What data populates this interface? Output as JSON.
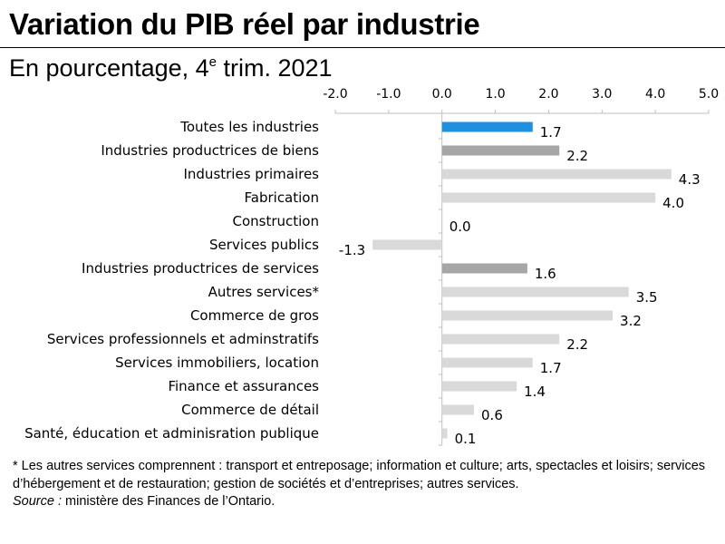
{
  "title": "Variation du PIB réel par industrie",
  "subtitle": {
    "prefix": "En pourcentage, 4",
    "superscript": "e",
    "suffix": " trim. 2021"
  },
  "chart_data": {
    "type": "bar",
    "orientation": "horizontal",
    "title": "Variation du PIB réel par industrie",
    "xlabel": "",
    "ylabel": "",
    "xlim": [
      -2.0,
      5.0
    ],
    "xticks": [
      -2.0,
      -1.0,
      0.0,
      1.0,
      2.0,
      3.0,
      4.0,
      5.0
    ],
    "tick_labels": [
      "-2.0",
      "-1.0",
      "0.0",
      "1.0",
      "2.0",
      "3.0",
      "4.0",
      "5.0"
    ],
    "axis_position": "top",
    "grid": false,
    "categories": [
      "Toutes les industries",
      "Industries productrices de biens",
      "Industries primaires",
      "Fabrication",
      "Construction",
      "Services publics",
      "Industries productrices de services",
      "Autres services*",
      "Commerce de gros",
      "Services professionnels et adminstratifs",
      "Services immobiliers, location",
      "Finance et assurances",
      "Commerce de détail",
      "Santé, éducation et adminisration publique"
    ],
    "values": [
      1.7,
      2.2,
      4.3,
      4.0,
      0.0,
      -1.3,
      1.6,
      3.5,
      3.2,
      2.2,
      1.7,
      1.4,
      0.6,
      0.1
    ],
    "value_labels": [
      "1.7",
      "2.2",
      "4.3",
      "4.0",
      "0.0",
      "-1.3",
      "1.6",
      "3.5",
      "3.2",
      "2.2",
      "1.7",
      "1.4",
      "0.6",
      "0.1"
    ],
    "bar_colors": [
      "#1f8fe0",
      "#a6a6a6",
      "#d9d9d9",
      "#d9d9d9",
      "#d9d9d9",
      "#d9d9d9",
      "#a6a6a6",
      "#d9d9d9",
      "#d9d9d9",
      "#d9d9d9",
      "#d9d9d9",
      "#d9d9d9",
      "#d9d9d9",
      "#d9d9d9"
    ]
  },
  "footnote": {
    "note": "* Les autres services comprennent  : transport et entreposage; information et culture; arts, spectacles et loisirs; services d’hébergement  et de restauration; gestion de sociétés et d’entreprises; autres services.",
    "source_label": "Source :",
    "source_text": " ministère des Finances de l’Ontario."
  },
  "colors": {
    "axis": "#bfbfbf",
    "text": "#000000"
  }
}
